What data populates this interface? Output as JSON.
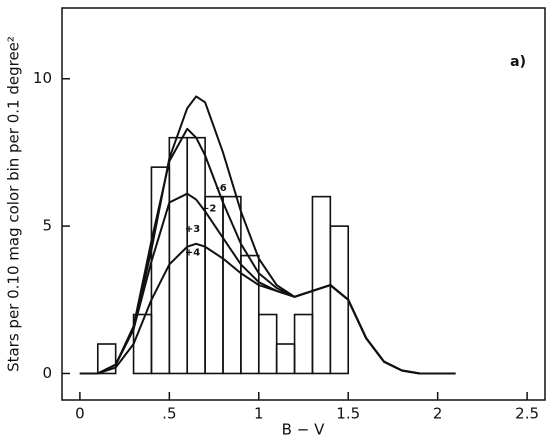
{
  "chart_data": {
    "type": "histogram",
    "annotation": "a)",
    "xlabel": "B − V",
    "ylabel": "Stars per 0.10 mag color bin per 0.1 degree²",
    "bins": [
      0.1,
      0.2,
      0.3,
      0.4,
      0.5,
      0.6,
      0.7,
      0.8,
      0.9,
      1.0,
      1.1,
      1.2,
      1.3,
      1.4,
      1.5
    ],
    "counts": [
      1,
      0,
      2,
      7,
      8,
      8,
      6,
      6,
      4,
      2,
      1,
      2,
      6,
      5
    ],
    "color": "#111111",
    "curves": {
      "x": [
        0,
        0.1,
        0.2,
        0.3,
        0.4,
        0.5,
        0.6,
        0.65,
        0.7,
        0.8,
        0.9,
        1.0,
        1.1,
        1.2,
        1.3,
        1.4,
        1.5,
        1.6,
        1.7,
        1.8,
        1.9,
        2.0,
        2.1
      ],
      "series": [
        {
          "name": "-6",
          "color": "#111111",
          "values": [
            0,
            0,
            0.3,
            1.5,
            4.2,
            7.3,
            9.0,
            9.4,
            9.2,
            7.5,
            5.5,
            3.9,
            3.0,
            2.6,
            2.8,
            3.0,
            2.5,
            1.2,
            0.4,
            0.1,
            0,
            0,
            0
          ]
        },
        {
          "name": "+2",
          "color": "#111111",
          "values": [
            0,
            0,
            0.3,
            1.6,
            4.5,
            7.2,
            8.3,
            8.0,
            7.4,
            5.8,
            4.4,
            3.4,
            2.9,
            2.6,
            2.8,
            3.0,
            2.5,
            1.2,
            0.4,
            0.1,
            0,
            0,
            0
          ]
        },
        {
          "name": "+3",
          "color": "#111111",
          "values": [
            0,
            0,
            0.3,
            1.5,
            3.8,
            5.8,
            6.1,
            5.9,
            5.5,
            4.6,
            3.7,
            3.1,
            2.8,
            2.6,
            2.8,
            3.0,
            2.5,
            1.2,
            0.4,
            0.1,
            0,
            0,
            0
          ]
        },
        {
          "name": "+4",
          "color": "#111111",
          "values": [
            0,
            0,
            0.2,
            1.0,
            2.5,
            3.7,
            4.3,
            4.4,
            4.3,
            3.9,
            3.4,
            3.0,
            2.8,
            2.6,
            2.8,
            3.0,
            2.5,
            1.2,
            0.4,
            0.1,
            0,
            0,
            0
          ]
        }
      ]
    },
    "xlim": [
      -0.1,
      2.6
    ],
    "xticks": [
      0,
      {
        "value": 0.5,
        "label": ".5"
      },
      1,
      1.5,
      2,
      2.5
    ],
    "ylim": [
      -0.9,
      12.4
    ],
    "yticks": [
      0,
      5,
      10
    ]
  }
}
